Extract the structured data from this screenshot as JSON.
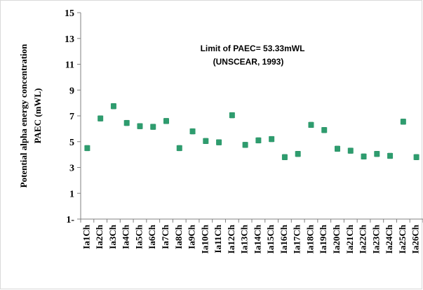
{
  "chart_data": {
    "type": "scatter",
    "ylabel_lines": [
      "Potential alpha energy concentration",
      "PAEC  (mWL)"
    ],
    "annotation_lines": [
      "Limit of PAEC= 53.33mWL",
      "(UNSCEAR, 1993)"
    ],
    "ylim": [
      -1,
      15
    ],
    "yticks": [
      -1,
      1,
      3,
      5,
      7,
      9,
      11,
      13,
      15
    ],
    "ytick_labels": [
      "1-",
      "1",
      "3",
      "5",
      "7",
      "9",
      "11",
      "13",
      "15"
    ],
    "categories": [
      "Ia1Ch",
      "Ia2Ch",
      "Ia3Ch",
      "Ia4Ch",
      "Ia5Ch",
      "Ia6Ch",
      "Ia7Ch",
      "Ia8Ch",
      "Ia9Ch",
      "Ia10Ch",
      "Ia11Ch",
      "Ia12Ch",
      "Ia13Ch",
      "Ia14Ch",
      "Ia15Ch",
      "Ia16Ch",
      "Ia17Ch",
      "Ia18Ch",
      "Ia19Ch",
      "Ia20Ch",
      "Ia21Ch",
      "Ia22Ch",
      "Ia23Ch",
      "Ia24Ch",
      "Ia25Ch",
      "Ia26Ch"
    ],
    "values": [
      4.5,
      6.8,
      7.75,
      6.45,
      6.2,
      6.15,
      6.6,
      4.5,
      5.8,
      5.05,
      4.95,
      7.05,
      4.75,
      5.1,
      5.2,
      3.8,
      4.05,
      6.3,
      5.9,
      4.45,
      4.3,
      3.85,
      4.05,
      3.9,
      6.55,
      3.8
    ],
    "error": 0.2,
    "grid": false,
    "legend": "none",
    "marker_color": "#2e9c6e"
  }
}
